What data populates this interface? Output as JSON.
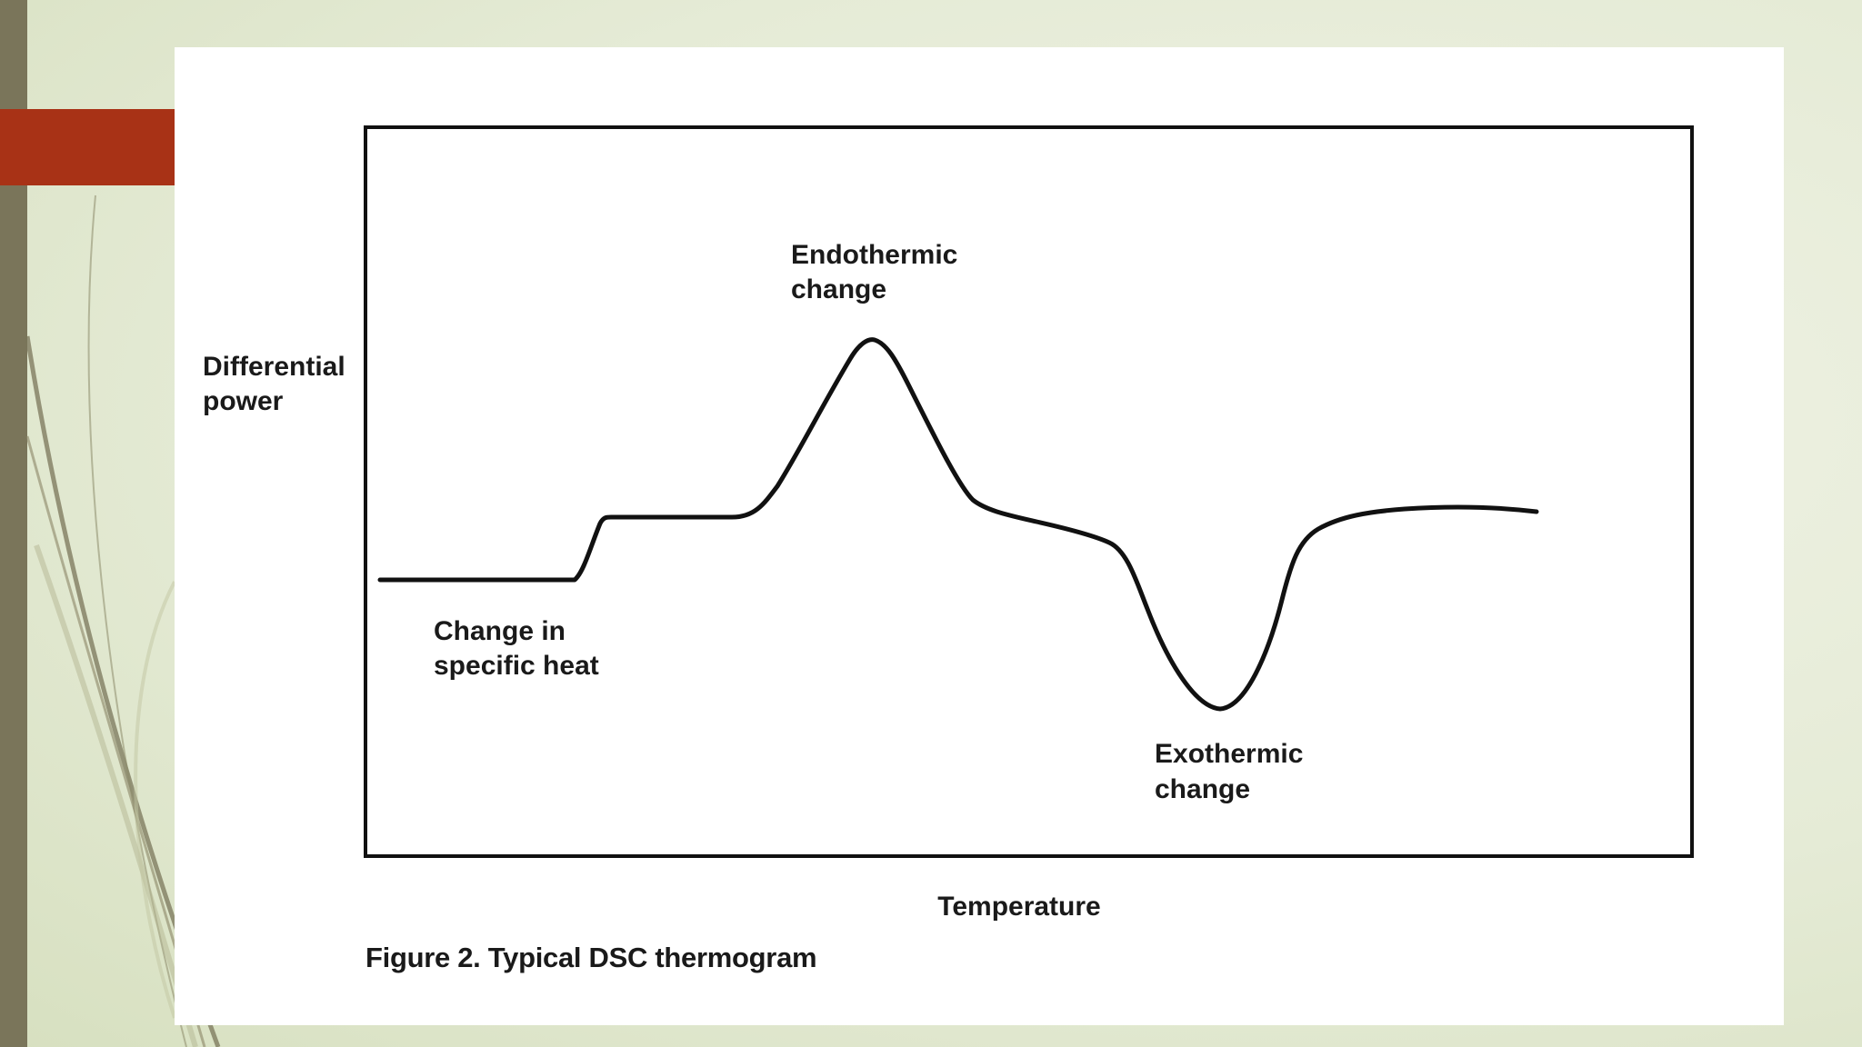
{
  "diagram": {
    "y_axis_label": [
      "Differential",
      "power"
    ],
    "x_axis_label": "Temperature",
    "annotations": {
      "endothermic": [
        "Endothermic",
        "change"
      ],
      "specific_heat": [
        "Change in",
        "specific heat"
      ],
      "exothermic": [
        "Exothermic",
        "change"
      ]
    },
    "caption": "Figure 2. Typical DSC thermogram",
    "curve_color": "#111111",
    "accent_color": "#a83216",
    "sidebar_color": "#7a755a"
  }
}
